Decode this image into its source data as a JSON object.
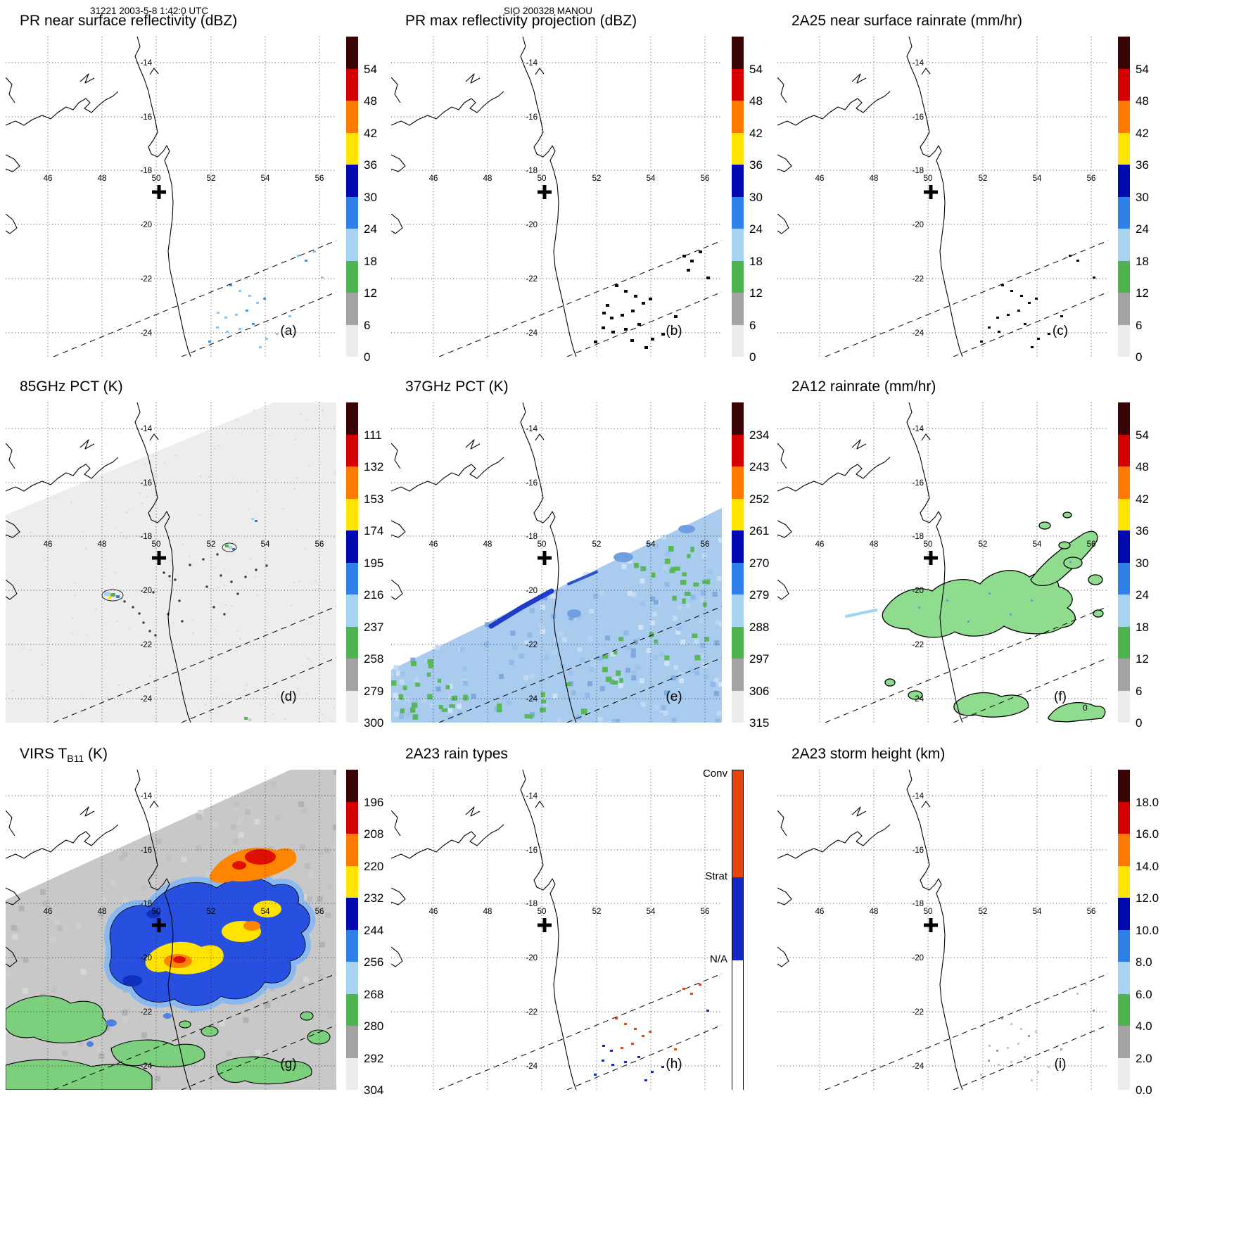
{
  "header": {
    "left_note": "31221 2003-5-8 1:42:0 UTC",
    "center_note": "SIO 200328 MANOU"
  },
  "map_labels": {
    "lon": [
      "46",
      "48",
      "50",
      "52",
      "54",
      "56"
    ],
    "lat": [
      "-14",
      "-16",
      "-18",
      "-20",
      "-22",
      "-24"
    ]
  },
  "colors": {
    "scale": [
      "#3a0505",
      "#d40000",
      "#ff7a00",
      "#ffe400",
      "#0008b0",
      "#2e7fe8",
      "#a8d4f2",
      "#4fb34f",
      "#a3a3a3",
      "#ececec"
    ],
    "conv": "#e8450e",
    "strat": "#1228c8",
    "na": "#ffffff"
  },
  "panels": [
    {
      "letter": "(a)",
      "title_parts": [
        {
          "t": "PR near surface reflectivity (dBZ)"
        }
      ],
      "colorbar": {
        "type": "scale",
        "unit": "dBZ",
        "ticks": [
          "54",
          "48",
          "42",
          "36",
          "30",
          "24",
          "18",
          "12",
          "6",
          "0"
        ]
      },
      "overlay": "pr_blue"
    },
    {
      "letter": "(b)",
      "title_parts": [
        {
          "t": "PR max reflectivity projection (dBZ)"
        }
      ],
      "colorbar": {
        "type": "scale",
        "unit": "dBZ",
        "ticks": [
          "54",
          "48",
          "42",
          "36",
          "30",
          "24",
          "18",
          "12",
          "6",
          "0"
        ]
      },
      "overlay": "pr_black"
    },
    {
      "letter": "(c)",
      "title_parts": [
        {
          "t": "2A25 near surface rainrate (mm/hr)"
        }
      ],
      "colorbar": {
        "type": "scale",
        "unit": "mm/hr",
        "ticks": [
          "54",
          "48",
          "42",
          "36",
          "30",
          "24",
          "18",
          "12",
          "6",
          "0"
        ]
      },
      "overlay": "pr_black_small"
    },
    {
      "letter": "(d)",
      "title_parts": [
        {
          "t": "85GHz PCT (K)"
        }
      ],
      "colorbar": {
        "type": "scale",
        "unit": "K",
        "ticks": [
          "111",
          "132",
          "153",
          "174",
          "195",
          "216",
          "237",
          "258",
          "279",
          "300"
        ]
      },
      "overlay": "pct85"
    },
    {
      "letter": "(e)",
      "title_parts": [
        {
          "t": "37GHz PCT (K)"
        }
      ],
      "colorbar": {
        "type": "scale",
        "unit": "K",
        "ticks": [
          "234",
          "243",
          "252",
          "261",
          "270",
          "279",
          "288",
          "297",
          "306",
          "315"
        ]
      },
      "overlay": "pct37"
    },
    {
      "letter": "(f)",
      "title_parts": [
        {
          "t": "2A12 rainrate (mm/hr)"
        }
      ],
      "contour_label": "0",
      "colorbar": {
        "type": "scale",
        "unit": "mm/hr",
        "ticks": [
          "54",
          "48",
          "42",
          "36",
          "30",
          "24",
          "18",
          "12",
          "6",
          "0"
        ]
      },
      "overlay": "rr2a12"
    },
    {
      "letter": "(g)",
      "title_parts": [
        {
          "t": "VIRS T"
        },
        {
          "t": "B11",
          "sub": true
        },
        {
          "t": " (K)"
        }
      ],
      "colorbar": {
        "type": "scale",
        "unit": "K",
        "ticks": [
          "196",
          "208",
          "220",
          "232",
          "244",
          "256",
          "268",
          "280",
          "292",
          "304"
        ]
      },
      "overlay": "virs"
    },
    {
      "letter": "(h)",
      "title_parts": [
        {
          "t": "2A23 rain types"
        }
      ],
      "colorbar": {
        "type": "raintype",
        "labels": [
          "Conv",
          "Strat",
          "N/A"
        ]
      },
      "overlay": "raintypes"
    },
    {
      "letter": "(i)",
      "title_parts": [
        {
          "t": "2A23 storm height (km)"
        }
      ],
      "colorbar": {
        "type": "scale",
        "unit": "km",
        "ticks": [
          "18.0",
          "16.0",
          "14.0",
          "12.0",
          "10.0",
          "8.0",
          "6.0",
          "4.0",
          "2.0",
          "0.0"
        ]
      },
      "overlay": "stormheight"
    }
  ]
}
